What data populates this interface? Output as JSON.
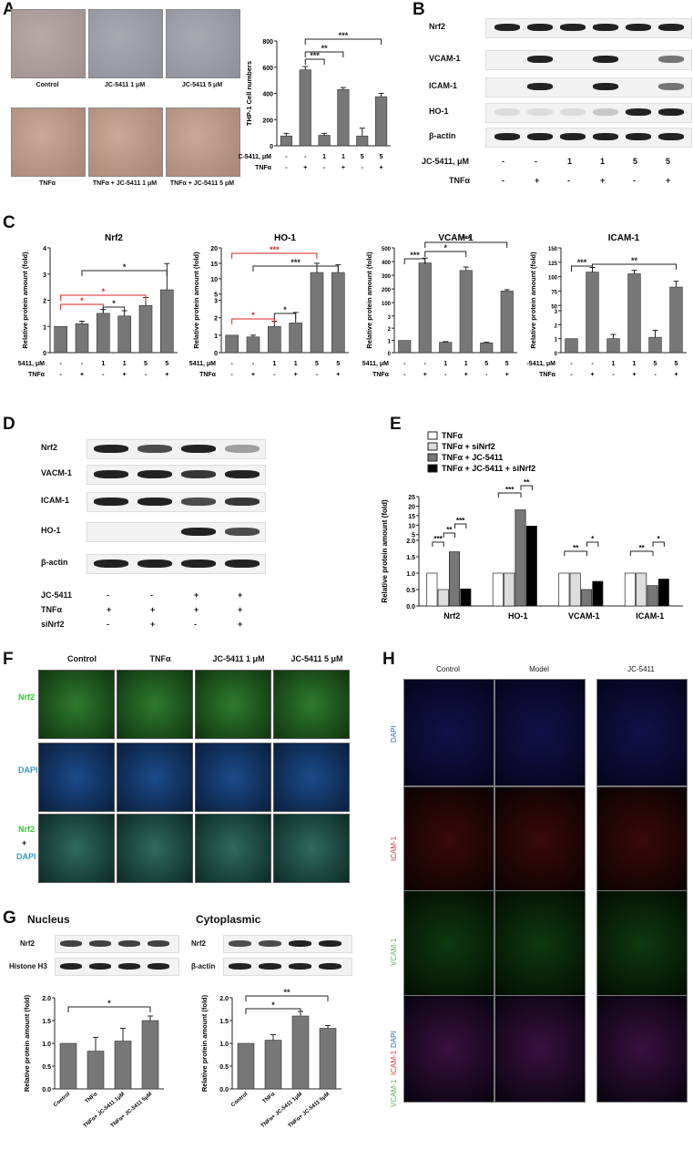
{
  "panels": {
    "A": "A",
    "B": "B",
    "C": "C",
    "D": "D",
    "E": "E",
    "F": "F",
    "G": "G",
    "H": "H"
  },
  "a": {
    "captions": [
      "Control",
      "JC-5411 1 μM",
      "JC-5411 5 μM",
      "TNFα",
      "TNFα + JC-5411 1 μM",
      "TNFα + JC-5411 5 μM"
    ],
    "row1": "JC-5411, μM",
    "row2": "TNFα",
    "jc": [
      "-",
      "-",
      "1",
      "1",
      "5",
      "5"
    ],
    "tnf": [
      "-",
      "+",
      "-",
      "+",
      "-",
      "+"
    ]
  },
  "b": {
    "labels": [
      "Nrf2",
      "VCAM-1",
      "ICAM-1",
      "HO-1",
      "β-actin"
    ],
    "row1": "JC-5411, μM",
    "row2": "TNFα",
    "jc": [
      "-",
      "-",
      "1",
      "1",
      "5",
      "5"
    ],
    "tnf": [
      "-",
      "+",
      "-",
      "+",
      "-",
      "+"
    ]
  },
  "d": {
    "labels": [
      "Nrf2",
      "VACM-1",
      "ICAM-1",
      "HO-1",
      "β-actin"
    ],
    "rows": [
      {
        "name": "JC-5411",
        "vals": [
          "-",
          "-",
          "+",
          "+"
        ]
      },
      {
        "name": "TNFα",
        "vals": [
          "+",
          "+",
          "+",
          "+"
        ]
      },
      {
        "name": "siNrf2",
        "vals": [
          "-",
          "+",
          "-",
          "+"
        ]
      }
    ]
  },
  "f": {
    "cols": [
      "Control",
      "TNFα",
      "JC-5411 1 μM",
      "JC-5411 5 μM"
    ],
    "rows": [
      "Nrf2",
      "DAPI",
      "Nrf2",
      "+",
      "DAPI"
    ]
  },
  "g": {
    "nucleus": "Nucleus",
    "cyto": "Cytoplasmic",
    "nrf2": "Nrf2",
    "h3": "Histone H3",
    "actin": "β-actin"
  },
  "h": {
    "cols": [
      "Control",
      "Model",
      "JC-5411"
    ],
    "rows": [
      "DAPI",
      "ICAM-1",
      "VCAM-1",
      "DAPI",
      "ICAM-1",
      "VCAM-1"
    ]
  },
  "chart_data": [
    {
      "id": "A",
      "type": "bar",
      "ylabel": "THP-1 Cell numbers",
      "ylim": [
        0,
        800
      ],
      "yticks": [
        0,
        200,
        400,
        600,
        800
      ],
      "values": [
        75,
        580,
        80,
        430,
        75,
        375
      ],
      "errors": [
        20,
        25,
        15,
        15,
        60,
        25
      ],
      "sig": [
        {
          "a": 1,
          "b": 2,
          "t": "***"
        },
        {
          "a": 1,
          "b": 3,
          "t": "**"
        },
        {
          "a": 1,
          "b": 5,
          "t": "***"
        }
      ],
      "jc": [
        "-",
        "-",
        "1",
        "1",
        "5",
        "5"
      ],
      "tnf": [
        "-",
        "+",
        "-",
        "+",
        "-",
        "+"
      ],
      "row1": "JC-5411, μM",
      "row2": "TNFα"
    },
    {
      "id": "C1",
      "type": "bar",
      "title": "Nrf2",
      "ylabel": "Relative protein amount (fold)",
      "ylim": [
        0,
        4
      ],
      "yticks": [
        0,
        1,
        2,
        3,
        4
      ],
      "values": [
        1.0,
        1.1,
        1.5,
        1.4,
        1.8,
        2.4
      ],
      "errors": [
        0,
        0.1,
        0.15,
        0.2,
        0.3,
        1.0
      ],
      "jc": [
        "-",
        "-",
        "1",
        "1",
        "5",
        "5"
      ],
      "tnf": [
        "-",
        "+",
        "-",
        "+",
        "-",
        "+"
      ],
      "row1": "JC-5411, μM",
      "row2": "TNFα"
    },
    {
      "id": "C2",
      "type": "bar",
      "title": "HO-1",
      "ylabel": "Relative protein amount (fold)",
      "yticks": [
        0,
        1,
        2,
        3,
        5,
        10,
        15,
        20
      ],
      "values": [
        1.0,
        0.9,
        1.5,
        1.7,
        12,
        12
      ],
      "errors": [
        0,
        0.1,
        0.3,
        0.6,
        3,
        2.5
      ],
      "jc": [
        "-",
        "-",
        "1",
        "1",
        "5",
        "5"
      ],
      "tnf": [
        "-",
        "+",
        "-",
        "+",
        "-",
        "+"
      ],
      "row1": "JC-5411, μM",
      "row2": "TNFα"
    },
    {
      "id": "C3",
      "type": "bar",
      "title": "VCAM-1",
      "ylabel": "Relative protein amount (fold)",
      "yticks": [
        0,
        1,
        2,
        3,
        100,
        200,
        300,
        400,
        500
      ],
      "values": [
        1.0,
        390,
        0.85,
        335,
        0.8,
        185
      ],
      "errors": [
        0,
        35,
        0.05,
        25,
        0.05,
        10
      ],
      "jc": [
        "-",
        "-",
        "1",
        "1",
        "5",
        "5"
      ],
      "tnf": [
        "-",
        "+",
        "-",
        "+",
        "-",
        "+"
      ],
      "row1": "JC-5411, μM",
      "row2": "TNFα"
    },
    {
      "id": "C4",
      "type": "bar",
      "title": "ICAM-1",
      "ylabel": "Relative protein amount (fold)",
      "yticks": [
        0,
        1,
        2,
        3,
        50,
        75,
        100,
        125,
        150
      ],
      "values": [
        1.0,
        108,
        1.0,
        105,
        1.1,
        82
      ],
      "errors": [
        0,
        8,
        0.3,
        6,
        0.5,
        10
      ],
      "jc": [
        "-",
        "-",
        "1",
        "1",
        "5",
        "5"
      ],
      "tnf": [
        "-",
        "+",
        "-",
        "+",
        "-",
        "+"
      ],
      "row1": "JC-5411, μM",
      "row2": "TNFα"
    },
    {
      "id": "E",
      "type": "bar",
      "ylabel": "Relative protein amount (fold)",
      "categories": [
        "Nrf2",
        "HO-1",
        "VCAM-1",
        "ICAM-1"
      ],
      "yticks": [
        "0.0",
        "0.5",
        "1.0",
        "1.5",
        "2.0",
        "5",
        "10",
        "15",
        "20",
        "25"
      ],
      "series": [
        {
          "name": "TNFα",
          "values": [
            1.0,
            1.0,
            1.0,
            1.0
          ]
        },
        {
          "name": "TNFα + siNrf2",
          "values": [
            0.5,
            1.0,
            1.0,
            1.0
          ]
        },
        {
          "name": "TNFα + JC-5411",
          "values": [
            1.65,
            18,
            0.5,
            0.62
          ]
        },
        {
          "name": "TNFα + JC-5411 + siNrf2",
          "values": [
            0.52,
            9.5,
            0.75,
            0.82
          ]
        }
      ]
    },
    {
      "id": "G1",
      "type": "bar",
      "ylabel": "Relative protein amount (fold)",
      "ylim": [
        0,
        2.0
      ],
      "yticks": [
        "0.0",
        "0.5",
        "1.0",
        "1.5",
        "2.0"
      ],
      "categories": [
        "Control",
        "TNFα",
        "TNFα+ JC-5411 1μM",
        "TNFα+ JC-5411 5μM"
      ],
      "values": [
        1.0,
        0.83,
        1.05,
        1.5
      ],
      "errors": [
        0,
        0.3,
        0.28,
        0.1
      ]
    },
    {
      "id": "G2",
      "type": "bar",
      "ylabel": "Relative protein amount (fold)",
      "ylim": [
        0,
        2.0
      ],
      "yticks": [
        "0.0",
        "0.5",
        "1.0",
        "1.5",
        "2.0"
      ],
      "categories": [
        "Control",
        "TNFα",
        "TNFα+ JC-5411 1μM",
        "TNFα+ JC-5411 5μM"
      ],
      "values": [
        1.0,
        1.07,
        1.6,
        1.33
      ],
      "errors": [
        0,
        0.12,
        0.1,
        0.06
      ]
    }
  ]
}
